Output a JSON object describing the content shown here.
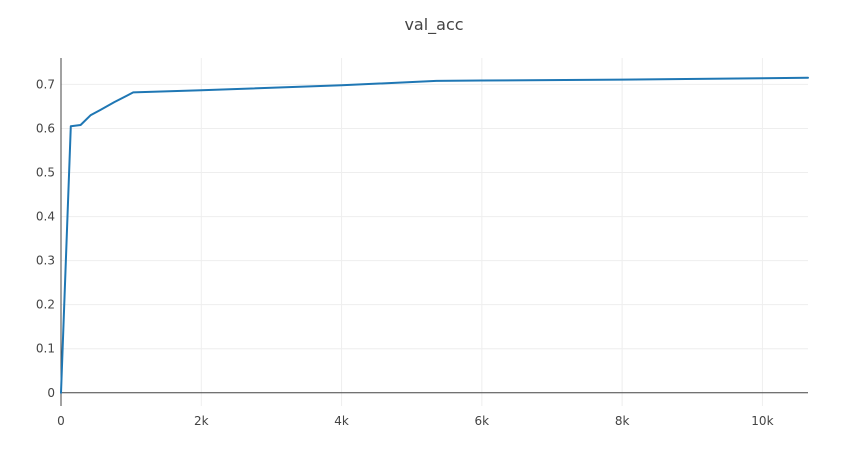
{
  "chart_data": {
    "type": "line",
    "title": "val_acc",
    "xlabel": "",
    "ylabel": "",
    "xlim": [
      0,
      10650
    ],
    "ylim": [
      -0.03,
      0.76
    ],
    "grid": true,
    "legend": "none",
    "x_ticks": [
      {
        "value": 0,
        "label": "0"
      },
      {
        "value": 2000,
        "label": "2k"
      },
      {
        "value": 4000,
        "label": "4k"
      },
      {
        "value": 6000,
        "label": "6k"
      },
      {
        "value": 8000,
        "label": "8k"
      },
      {
        "value": 10000,
        "label": "10k"
      }
    ],
    "y_ticks": [
      {
        "value": 0,
        "label": "0"
      },
      {
        "value": 0.1,
        "label": "0.1"
      },
      {
        "value": 0.2,
        "label": "0.2"
      },
      {
        "value": 0.3,
        "label": "0.3"
      },
      {
        "value": 0.4,
        "label": "0.4"
      },
      {
        "value": 0.5,
        "label": "0.5"
      },
      {
        "value": 0.6,
        "label": "0.6"
      },
      {
        "value": 0.7,
        "label": "0.7"
      }
    ],
    "series": [
      {
        "color": "#1f77b4",
        "x": [
          0,
          140,
          280,
          420,
          560,
          760,
          1030,
          2000,
          4000,
          5350,
          6000,
          8000,
          10000,
          10650
        ],
        "y": [
          0,
          0.605,
          0.608,
          0.63,
          0.642,
          0.66,
          0.682,
          0.687,
          0.698,
          0.708,
          0.709,
          0.711,
          0.714,
          0.715
        ]
      }
    ]
  }
}
